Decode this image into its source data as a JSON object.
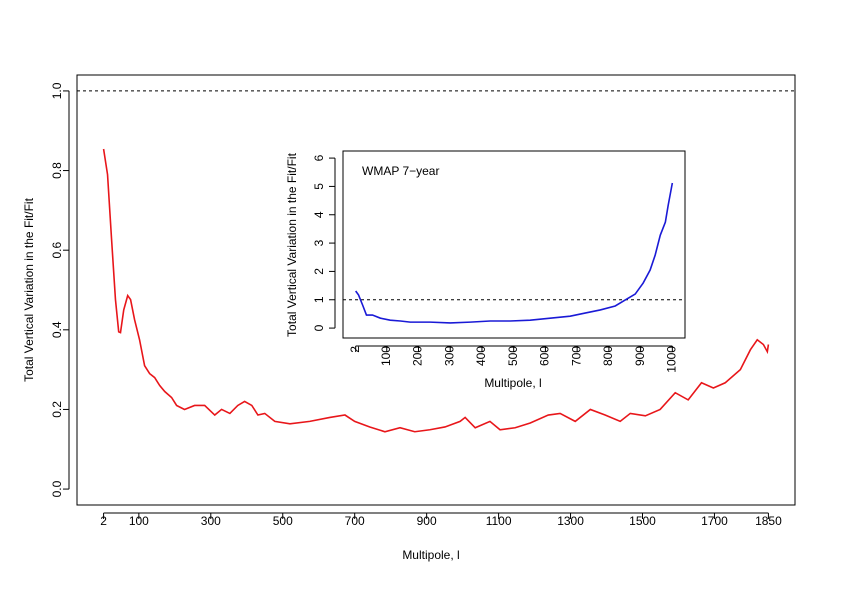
{
  "chart_data": [
    {
      "type": "line",
      "x_label": "Multipole, l",
      "y_label": "Total Vertical Variation in the Fit/Fit",
      "xlim": [
        -71.9,
        1923.9
      ],
      "ylim": [
        -0.04,
        1.04
      ],
      "xticks": [
        2,
        100,
        300,
        500,
        700,
        900,
        1100,
        1300,
        1500,
        1700,
        1850
      ],
      "yticks": [
        {
          "value": 0,
          "label": "0.0"
        },
        0.2,
        0.4,
        0.6,
        0.8,
        {
          "value": 1,
          "label": "1.0"
        }
      ],
      "hline": 1,
      "series": [
        {
          "color": "#e8161a",
          "x": [
            2,
            13,
            24,
            35,
            44,
            49,
            58,
            69,
            77,
            88,
            102,
            116,
            130,
            144,
            158,
            172,
            191,
            205,
            227,
            255,
            283,
            311,
            330,
            353,
            375,
            394,
            414,
            431,
            450,
            478,
            520,
            575,
            631,
            673,
            700,
            742,
            784,
            826,
            867,
            909,
            951,
            993,
            1007,
            1035,
            1076,
            1104,
            1146,
            1188,
            1238,
            1271,
            1313,
            1355,
            1396,
            1438,
            1466,
            1508,
            1549,
            1591,
            1627,
            1664,
            1697,
            1730,
            1772,
            1800,
            1819,
            1836,
            1847,
            1850
          ],
          "values": [
            0.854,
            0.79,
            0.63,
            0.476,
            0.395,
            0.393,
            0.45,
            0.486,
            0.476,
            0.426,
            0.375,
            0.31,
            0.29,
            0.28,
            0.26,
            0.245,
            0.23,
            0.21,
            0.2,
            0.21,
            0.21,
            0.186,
            0.2,
            0.19,
            0.21,
            0.22,
            0.21,
            0.186,
            0.19,
            0.17,
            0.164,
            0.17,
            0.18,
            0.186,
            0.17,
            0.156,
            0.144,
            0.154,
            0.144,
            0.149,
            0.156,
            0.17,
            0.18,
            0.154,
            0.17,
            0.149,
            0.154,
            0.166,
            0.186,
            0.19,
            0.17,
            0.2,
            0.186,
            0.17,
            0.19,
            0.184,
            0.2,
            0.242,
            0.224,
            0.267,
            0.254,
            0.267,
            0.3,
            0.35,
            0.375,
            0.363,
            0.345,
            0.363
          ]
        }
      ]
    },
    {
      "type": "line",
      "x_label": "Multipole, l",
      "y_label": "Total Vertical Variation in the Fit/Fit",
      "annotation": "WMAP 7−year",
      "annotation_color": "#1a1ad6",
      "xlim": [
        -37.9,
        1039.9
      ],
      "ylim": [
        -0.35,
        6.25
      ],
      "xticks": [
        2,
        100,
        200,
        300,
        400,
        500,
        600,
        700,
        800,
        900,
        1000
      ],
      "yticks": [
        0,
        1,
        2,
        3,
        4,
        5,
        6
      ],
      "hline": 1,
      "series": [
        {
          "color": "#1a1ad6",
          "x": [
            2,
            11,
            24,
            36,
            55,
            80,
            111,
            143,
            174,
            237,
            300,
            363,
            426,
            489,
            552,
            615,
            678,
            725,
            773,
            820,
            851,
            883,
            908,
            930,
            946,
            962,
            978,
            987,
            1000
          ],
          "values": [
            1.31,
            1.17,
            0.81,
            0.46,
            0.46,
            0.35,
            0.28,
            0.25,
            0.21,
            0.21,
            0.18,
            0.21,
            0.25,
            0.25,
            0.28,
            0.35,
            0.42,
            0.53,
            0.64,
            0.78,
            0.99,
            1.2,
            1.59,
            2.05,
            2.58,
            3.28,
            3.74,
            4.34,
            5.12
          ]
        }
      ]
    }
  ]
}
